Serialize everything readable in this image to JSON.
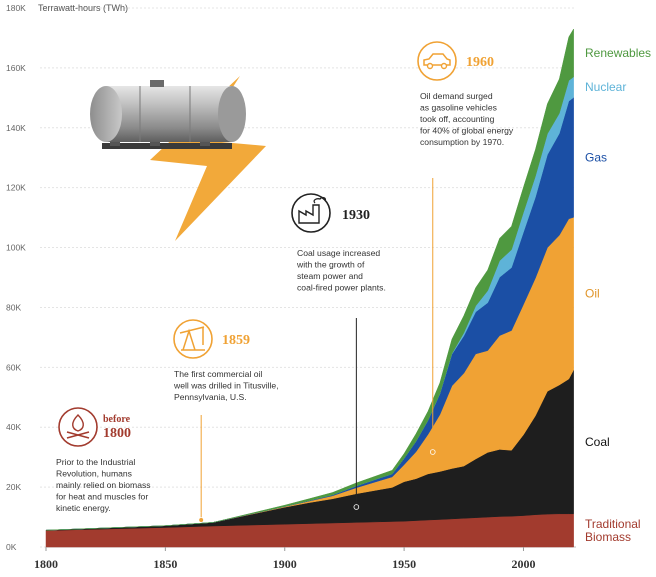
{
  "chart_data": {
    "type": "area",
    "stacked": true,
    "ylabel": "Terrawatt-hours (TWh)",
    "xlim": [
      1800,
      2022
    ],
    "ylim": [
      0,
      180000
    ],
    "y_ticks": [
      "0K",
      "20K",
      "40K",
      "60K",
      "80K",
      "100K",
      "120K",
      "140K",
      "160K",
      "180K"
    ],
    "x_ticks": [
      "1800",
      "1850",
      "1900",
      "1950",
      "2000"
    ],
    "grid": "horizontal",
    "legend_placement": "right",
    "x": [
      1800,
      1850,
      1870,
      1900,
      1910,
      1920,
      1930,
      1940,
      1945,
      1950,
      1955,
      1960,
      1965,
      1970,
      1975,
      1980,
      1985,
      1990,
      1995,
      2000,
      2005,
      2010,
      2015,
      2019,
      2021
    ],
    "series": [
      {
        "name": "Traditional Biomass",
        "color": "#a23b2e",
        "values": [
          5500,
          6500,
          7000,
          7600,
          7800,
          8000,
          8200,
          8400,
          8500,
          8600,
          8800,
          9000,
          9200,
          9400,
          9600,
          9800,
          10000,
          10200,
          10300,
          10500,
          10800,
          11000,
          11100,
          11100,
          11100
        ]
      },
      {
        "name": "Coal",
        "color": "#1e1e1e",
        "values": [
          100,
          600,
          1200,
          5700,
          7000,
          8100,
          9600,
          10800,
          11400,
          13200,
          14000,
          15400,
          16000,
          16800,
          17400,
          19600,
          21600,
          22400,
          22000,
          27000,
          33000,
          41000,
          43000,
          45000,
          48000
        ]
      },
      {
        "name": "Oil",
        "color": "#f0a234",
        "values": [
          0,
          0,
          10,
          200,
          500,
          1000,
          2000,
          3000,
          3500,
          5700,
          9000,
          13200,
          19000,
          27600,
          31000,
          35100,
          34000,
          38000,
          40000,
          43500,
          46000,
          48000,
          50000,
          53500,
          51000
        ]
      },
      {
        "name": "Gas",
        "color": "#1b4fa5",
        "values": [
          0,
          0,
          0,
          60,
          150,
          300,
          600,
          900,
          1000,
          2090,
          3500,
          4700,
          7000,
          10600,
          12500,
          14000,
          16000,
          19500,
          21000,
          24200,
          27000,
          31000,
          34000,
          39300,
          40000
        ]
      },
      {
        "name": "Nuclear",
        "color": "#5eb3d8",
        "values": [
          0,
          0,
          0,
          0,
          0,
          0,
          0,
          0,
          0,
          0,
          0,
          10,
          50,
          200,
          1000,
          2000,
          4000,
          5500,
          6000,
          6600,
          7000,
          7000,
          6700,
          6900,
          6900
        ]
      },
      {
        "name": "Renewables",
        "color": "#4f9940",
        "values": [
          0,
          0,
          0,
          400,
          600,
          800,
          1000,
          1100,
          1200,
          1600,
          2500,
          3000,
          3600,
          4800,
          5700,
          6100,
          6900,
          7500,
          7800,
          8400,
          8900,
          10000,
          11500,
          14500,
          16000
        ]
      }
    ],
    "annotations": [
      {
        "year": 1800,
        "title_small": "before",
        "title": "1800",
        "color": "#a23b2e",
        "icon": "campfire-icon",
        "lines": [
          "Prior to the Industrial",
          "Revolution, humans",
          "mainly relied on biomass",
          "for heat and muscles for",
          "kinetic energy."
        ]
      },
      {
        "year": 1865,
        "title": "1859",
        "color": "#f0a234",
        "icon": "oil-pump-icon",
        "lines": [
          "The first commercial oil",
          "well was drilled in Titusville,",
          "Pennsylvania, U.S."
        ]
      },
      {
        "year": 1930,
        "title": "1930",
        "color": "#222222",
        "icon": "factory-icon",
        "lines": [
          "Coal usage increased",
          "with the growth of",
          "steam power and",
          "coal-fired power plants."
        ]
      },
      {
        "year": 1962,
        "title": "1960",
        "color": "#f0a234",
        "icon": "car-icon",
        "lines": [
          "Oil demand surged",
          "as gasoline vehicles",
          "took off, accounting",
          "for 40% of global energy",
          "consumption by 1970."
        ]
      }
    ],
    "legend_labels": [
      {
        "series": "Renewables",
        "lines": [
          "Renewables"
        ],
        "color": "#4f9940"
      },
      {
        "series": "Nuclear",
        "lines": [
          "Nuclear"
        ],
        "color": "#5eb3d8"
      },
      {
        "series": "Gas",
        "lines": [
          "Gas"
        ],
        "color": "#1b4fa5"
      },
      {
        "series": "Oil",
        "lines": [
          "Oil"
        ],
        "color": "#e0952a"
      },
      {
        "series": "Coal",
        "lines": [
          "Coal"
        ],
        "color": "#111111"
      },
      {
        "series": "Traditional Biomass",
        "lines": [
          "Traditional",
          "Biomass"
        ],
        "color": "#a23b2e"
      }
    ]
  }
}
